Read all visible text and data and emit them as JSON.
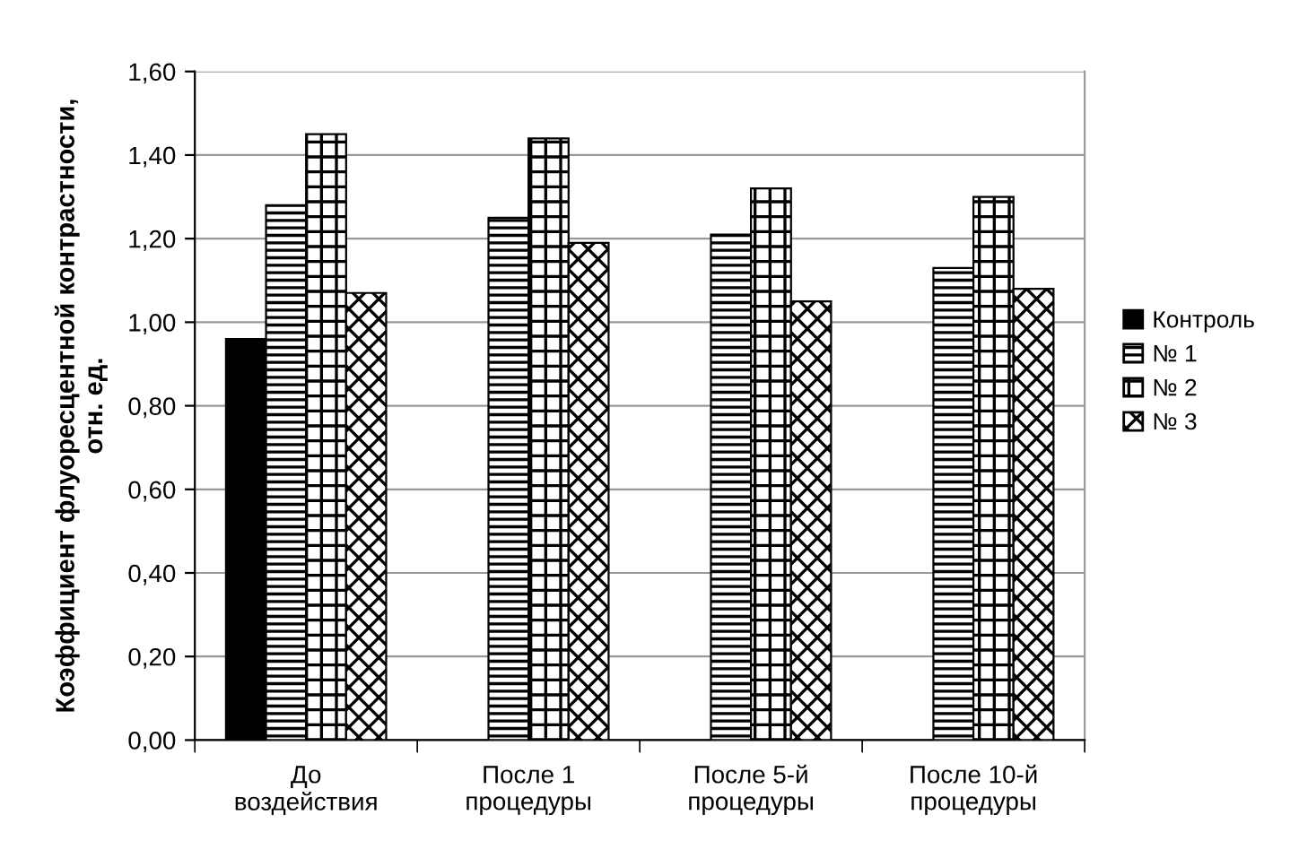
{
  "chart_data": {
    "type": "bar",
    "ylabel": "Коэффициент флуоресцентной контрастности,\nотн. ед.",
    "categories": [
      "До\nвоздействия",
      "После 1\nпроцедуры",
      "После 5-й\nпроцедуры",
      "После 10-й\nпроцедуры"
    ],
    "series": [
      {
        "name": "Контроль",
        "color": "#000000",
        "values": [
          0.96,
          null,
          null,
          null
        ]
      },
      {
        "name": "№ 1",
        "color": "#000000",
        "values": [
          1.28,
          1.25,
          1.21,
          1.13
        ]
      },
      {
        "name": "№ 2",
        "color": "#000000",
        "values": [
          1.45,
          1.44,
          1.32,
          1.3
        ]
      },
      {
        "name": "№ 3",
        "color": "#000000",
        "values": [
          1.07,
          1.19,
          1.05,
          1.08
        ]
      }
    ],
    "ylim": [
      0,
      1.6
    ],
    "yticks": [
      {
        "value": 0,
        "label": "0,00"
      },
      {
        "value": 0.2,
        "label": "0,20"
      },
      {
        "value": 0.4,
        "label": "0,40"
      },
      {
        "value": 0.6,
        "label": "0,60"
      },
      {
        "value": 0.8,
        "label": "0,80"
      },
      {
        "value": 1.0,
        "label": "1,00"
      },
      {
        "value": 1.2,
        "label": "1,20"
      },
      {
        "value": 1.4,
        "label": "1,40"
      },
      {
        "value": 1.6,
        "label": "1,60"
      }
    ],
    "grid": "y",
    "legend": "right"
  }
}
